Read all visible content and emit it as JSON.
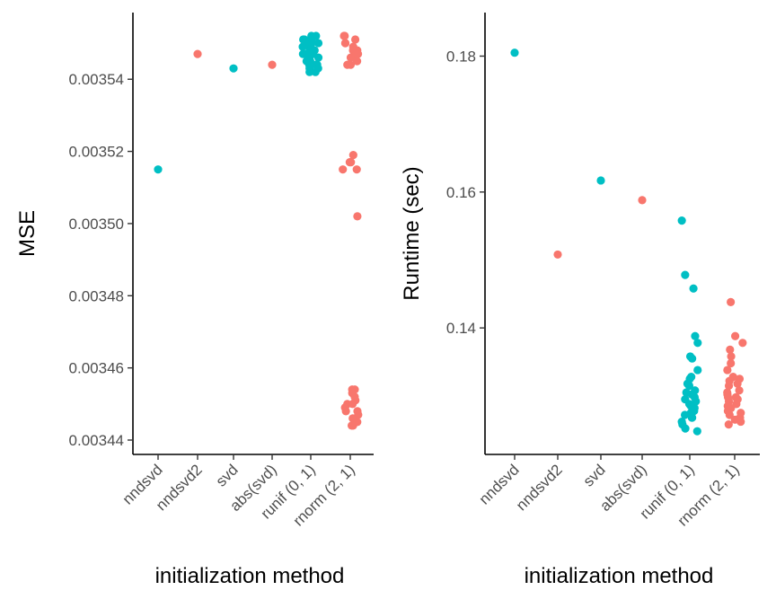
{
  "colors": {
    "teal": "#00BFC4",
    "salmon": "#F8766D"
  },
  "chart_data": [
    {
      "type": "scatter",
      "xlabel": "initialization method",
      "ylabel": "MSE",
      "categories": [
        "nndsvd",
        "nndsvd2",
        "svd",
        "abs(svd)",
        "runif (0, 1)",
        "rnorm (2, 1)"
      ],
      "category_colors": [
        "teal",
        "salmon",
        "teal",
        "salmon",
        "teal",
        "salmon"
      ],
      "y_ticks": [
        0.00344,
        0.00346,
        0.00348,
        0.0035,
        0.00352,
        0.00354
      ],
      "y_tick_labels": [
        "0.00344",
        "0.00346",
        "0.00348",
        "0.00350",
        "0.00352",
        "0.00354"
      ],
      "ylim": [
        0.00344,
        0.003553
      ],
      "grid": false,
      "points": [
        {
          "category": "nndsvd",
          "values": [
            0.003515
          ]
        },
        {
          "category": "nndsvd2",
          "values": [
            0.003547
          ]
        },
        {
          "category": "svd",
          "values": [
            0.003543
          ]
        },
        {
          "category": "abs(svd)",
          "values": [
            0.003544
          ]
        },
        {
          "category": "runif (0, 1)",
          "values": [
            0.003552,
            0.003552,
            0.003551,
            0.003551,
            0.00355,
            0.00355,
            0.003549,
            0.003549,
            0.003549,
            0.003548,
            0.003548,
            0.003547,
            0.003547,
            0.003546,
            0.003546,
            0.003545,
            0.003545,
            0.003545,
            0.003544,
            0.003544,
            0.003543,
            0.003543,
            0.003542,
            0.003542,
            0.003548,
            0.003546,
            0.003544,
            0.003551,
            0.00355,
            0.003547
          ]
        },
        {
          "category": "rnorm (2, 1)",
          "values": [
            0.003552,
            0.003552,
            0.003551,
            0.00355,
            0.00355,
            0.003549,
            0.003548,
            0.003548,
            0.003547,
            0.003547,
            0.003546,
            0.003545,
            0.003544,
            0.003544,
            0.003519,
            0.003517,
            0.003517,
            0.003515,
            0.003515,
            0.003502,
            0.003454,
            0.003454,
            0.003453,
            0.003452,
            0.003451,
            0.00345,
            0.003449,
            0.003448,
            0.003447,
            0.003446,
            0.003445,
            0.003444,
            0.003444,
            0.00345,
            0.003448
          ]
        }
      ]
    },
    {
      "type": "scatter",
      "xlabel": "initialization method",
      "ylabel": "Runtime (sec)",
      "categories": [
        "nndsvd",
        "nndsvd2",
        "svd",
        "abs(svd)",
        "runif (0, 1)",
        "rnorm (2, 1)"
      ],
      "category_colors": [
        "teal",
        "salmon",
        "teal",
        "salmon",
        "teal",
        "salmon"
      ],
      "y_ticks": [
        0.14,
        0.16,
        0.18
      ],
      "y_tick_labels": [
        "0.14",
        "0.16",
        "0.18"
      ],
      "ylim": [
        0.1235,
        0.1835
      ],
      "grid": false,
      "points": [
        {
          "category": "nndsvd",
          "values": [
            0.1805
          ]
        },
        {
          "category": "nndsvd2",
          "values": [
            0.1508
          ]
        },
        {
          "category": "svd",
          "values": [
            0.1617
          ]
        },
        {
          "category": "abs(svd)",
          "values": [
            0.1588
          ]
        },
        {
          "category": "runif (0, 1)",
          "values": [
            0.1558,
            0.1478,
            0.1458,
            0.1388,
            0.1378,
            0.1358,
            0.1355,
            0.1338,
            0.1328,
            0.1325,
            0.1318,
            0.1308,
            0.1302,
            0.1298,
            0.1292,
            0.1288,
            0.1282,
            0.1278,
            0.1275,
            0.1272,
            0.1268,
            0.1262,
            0.1258,
            0.1252,
            0.1248,
            0.1295,
            0.1285,
            0.1305,
            0.1268,
            0.1315
          ]
        },
        {
          "category": "rnorm (2, 1)",
          "values": [
            0.1438,
            0.1388,
            0.1378,
            0.1368,
            0.1358,
            0.1348,
            0.1338,
            0.1328,
            0.1322,
            0.1315,
            0.1308,
            0.1302,
            0.1298,
            0.1292,
            0.1288,
            0.1282,
            0.1278,
            0.1272,
            0.1268,
            0.1265,
            0.1262,
            0.1258,
            0.1305,
            0.1295,
            0.1285,
            0.1275,
            0.1325,
            0.1265,
            0.1318,
            0.1298
          ]
        }
      ]
    }
  ]
}
